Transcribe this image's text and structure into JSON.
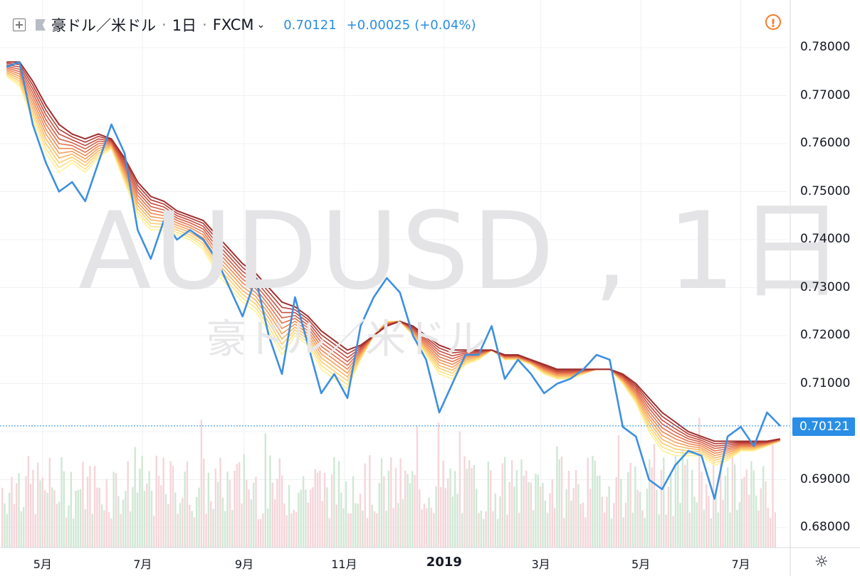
{
  "header": {
    "symbol": "豪ドル／米ドル",
    "interval": "1日",
    "exchange": "FXCM",
    "price": "0.70121",
    "change": "+0.00025",
    "change_pct": "(+0.04%)"
  },
  "watermark": {
    "ticker": "AUDUSD , 1日",
    "name": "豪ドル／米ドル"
  },
  "colors": {
    "price_line": "#3d8fe0",
    "ribbon": [
      "#fff19a",
      "#fde183",
      "#fbcd72",
      "#f9b766",
      "#f5a05c",
      "#ef8955",
      "#e5734e",
      "#d75f47",
      "#c84d40",
      "#b43d36",
      "#9e2f2e"
    ],
    "vol_up": "#cfe8d4",
    "vol_down": "#f5d5da"
  },
  "chart_data": {
    "type": "line",
    "title": "",
    "y_axis": {
      "ylim": [
        0.675,
        0.785
      ],
      "ticks": [
        "0.78000",
        "0.77000",
        "0.76000",
        "0.75000",
        "0.74000",
        "0.73000",
        "0.72000",
        "0.71000",
        "0.70000",
        "0.69000",
        "0.68000"
      ]
    },
    "x_axis": {
      "ticks": [
        "5月",
        "7月",
        "9月",
        "11月",
        "2019",
        "3月",
        "5月",
        "7月"
      ],
      "bold_tick": "2019"
    },
    "last_price_label": "0.70121",
    "grid": true,
    "series": [
      {
        "role": "price",
        "x": [
          "2018-04-09",
          "2018-04-17",
          "2018-04-25",
          "2018-05-03",
          "2018-05-11",
          "2018-05-19",
          "2018-05-27",
          "2018-06-04",
          "2018-06-12",
          "2018-06-20",
          "2018-06-28",
          "2018-07-06",
          "2018-07-14",
          "2018-07-22",
          "2018-07-30",
          "2018-08-07",
          "2018-08-15",
          "2018-08-23",
          "2018-08-31",
          "2018-09-08",
          "2018-09-16",
          "2018-09-24",
          "2018-10-02",
          "2018-10-10",
          "2018-10-18",
          "2018-10-26",
          "2018-11-03",
          "2018-11-11",
          "2018-11-19",
          "2018-11-27",
          "2018-12-05",
          "2018-12-13",
          "2018-12-21",
          "2018-12-29",
          "2019-01-06",
          "2019-01-14",
          "2019-01-22",
          "2019-01-30",
          "2019-02-07",
          "2019-02-15",
          "2019-02-23",
          "2019-03-03",
          "2019-03-11",
          "2019-03-19",
          "2019-03-27",
          "2019-04-04",
          "2019-04-12",
          "2019-04-20",
          "2019-04-28",
          "2019-05-06",
          "2019-05-14",
          "2019-05-22",
          "2019-05-30",
          "2019-06-07",
          "2019-06-15",
          "2019-06-23",
          "2019-07-01",
          "2019-07-09",
          "2019-07-17",
          "2019-07-25"
        ],
        "values": [
          0.776,
          0.777,
          0.764,
          0.756,
          0.75,
          0.752,
          0.748,
          0.756,
          0.764,
          0.758,
          0.742,
          0.736,
          0.744,
          0.74,
          0.742,
          0.74,
          0.736,
          0.73,
          0.724,
          0.732,
          0.72,
          0.712,
          0.728,
          0.718,
          0.708,
          0.712,
          0.707,
          0.722,
          0.728,
          0.732,
          0.729,
          0.72,
          0.715,
          0.704,
          0.71,
          0.716,
          0.716,
          0.722,
          0.711,
          0.715,
          0.712,
          0.708,
          0.71,
          0.711,
          0.713,
          0.716,
          0.715,
          0.701,
          0.699,
          0.69,
          0.688,
          0.693,
          0.696,
          0.695,
          0.686,
          0.699,
          0.701,
          0.697,
          0.704,
          0.7012
        ]
      },
      {
        "name": "",
        "role": "ema-ribbon",
        "note_values": "fastest to slowest",
        "values_fast": [
          0.774,
          0.772,
          0.765,
          0.758,
          0.754,
          0.756,
          0.754,
          0.757,
          0.759,
          0.752,
          0.745,
          0.742,
          0.742,
          0.741,
          0.74,
          0.738,
          0.733,
          0.73,
          0.727,
          0.725,
          0.721,
          0.716,
          0.72,
          0.718,
          0.713,
          0.711,
          0.709,
          0.715,
          0.72,
          0.723,
          0.723,
          0.72,
          0.716,
          0.712,
          0.711,
          0.714,
          0.715,
          0.717,
          0.715,
          0.715,
          0.714,
          0.712,
          0.711,
          0.711,
          0.712,
          0.713,
          0.713,
          0.71,
          0.706,
          0.7,
          0.696,
          0.695,
          0.695,
          0.695,
          0.693,
          0.694,
          0.696,
          0.696,
          0.697,
          0.698
        ],
        "values_slow": [
          0.777,
          0.777,
          0.773,
          0.768,
          0.764,
          0.762,
          0.761,
          0.762,
          0.761,
          0.757,
          0.752,
          0.749,
          0.748,
          0.746,
          0.745,
          0.744,
          0.741,
          0.738,
          0.735,
          0.733,
          0.73,
          0.727,
          0.726,
          0.724,
          0.721,
          0.719,
          0.717,
          0.718,
          0.72,
          0.722,
          0.723,
          0.722,
          0.72,
          0.718,
          0.717,
          0.717,
          0.717,
          0.717,
          0.716,
          0.716,
          0.715,
          0.714,
          0.713,
          0.713,
          0.713,
          0.713,
          0.713,
          0.712,
          0.71,
          0.707,
          0.704,
          0.702,
          0.7,
          0.699,
          0.698,
          0.698,
          0.698,
          0.698,
          0.698,
          0.6985
        ]
      }
    ]
  }
}
